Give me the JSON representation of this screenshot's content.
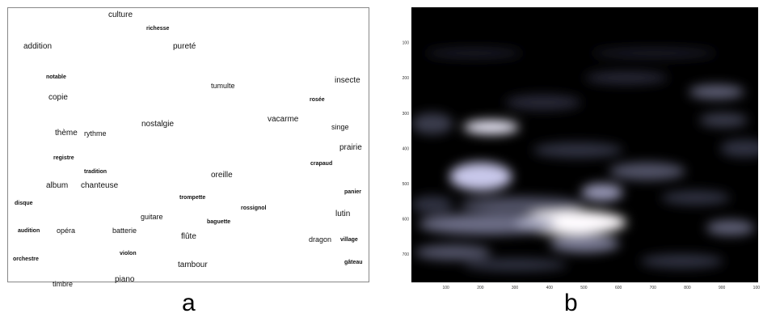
{
  "panel_a": {
    "label": "a",
    "words": [
      {
        "text": "culture",
        "size": "lg"
      },
      {
        "text": "richesse",
        "size": "sm"
      },
      {
        "text": "addition",
        "size": "lg"
      },
      {
        "text": "pureté",
        "size": "lg"
      },
      {
        "text": "notable",
        "size": "sm"
      },
      {
        "text": "tumulte",
        "size": "md"
      },
      {
        "text": "insecte",
        "size": "lg"
      },
      {
        "text": "copie",
        "size": "lg"
      },
      {
        "text": "rosée",
        "size": "sm"
      },
      {
        "text": "vacarme",
        "size": "lg"
      },
      {
        "text": "nostalgie",
        "size": "lg"
      },
      {
        "text": "singe",
        "size": "md"
      },
      {
        "text": "thème",
        "size": "lg"
      },
      {
        "text": "rythme",
        "size": "md"
      },
      {
        "text": "prairie",
        "size": "lg"
      },
      {
        "text": "registre",
        "size": "sm"
      },
      {
        "text": "crapaud",
        "size": "sm"
      },
      {
        "text": "tradition",
        "size": "sm"
      },
      {
        "text": "oreille",
        "size": "lg"
      },
      {
        "text": "album",
        "size": "lg"
      },
      {
        "text": "chanteuse",
        "size": "lg"
      },
      {
        "text": "panier",
        "size": "sm"
      },
      {
        "text": "trompette",
        "size": "sm"
      },
      {
        "text": "disque",
        "size": "sm"
      },
      {
        "text": "rossignol",
        "size": "sm"
      },
      {
        "text": "lutin",
        "size": "lg"
      },
      {
        "text": "guitare",
        "size": "md"
      },
      {
        "text": "baguette",
        "size": "sm"
      },
      {
        "text": "audition",
        "size": "sm"
      },
      {
        "text": "opéra",
        "size": "md"
      },
      {
        "text": "batterie",
        "size": "md"
      },
      {
        "text": "flûte",
        "size": "lg"
      },
      {
        "text": "dragon",
        "size": "md"
      },
      {
        "text": "village",
        "size": "sm"
      },
      {
        "text": "violon",
        "size": "sm"
      },
      {
        "text": "orchestre",
        "size": "sm"
      },
      {
        "text": "tambour",
        "size": "lg"
      },
      {
        "text": "gâteau",
        "size": "sm"
      },
      {
        "text": "piano",
        "size": "lg"
      },
      {
        "text": "timbre",
        "size": "md"
      }
    ]
  },
  "panel_b": {
    "label": "b",
    "chart_data": {
      "type": "heatmap",
      "colormap": "bone",
      "xlim": [
        0,
        1000
      ],
      "ylim": [
        0,
        780
      ],
      "y_inverted": true,
      "x_ticks": [
        "100",
        "200",
        "300",
        "400",
        "500",
        "600",
        "700",
        "800",
        "900",
        "100"
      ],
      "y_ticks": [
        "100",
        "200",
        "300",
        "400",
        "500",
        "600",
        "700"
      ],
      "blobs": [
        {
          "x": 460,
          "y": 610,
          "rx": 160,
          "ry": 35,
          "intensity": 1.0
        },
        {
          "x": 220,
          "y": 615,
          "rx": 200,
          "ry": 30,
          "intensity": 0.55
        },
        {
          "x": 230,
          "y": 340,
          "rx": 80,
          "ry": 20,
          "intensity": 0.95
        },
        {
          "x": 200,
          "y": 480,
          "rx": 90,
          "ry": 40,
          "intensity": 0.85
        },
        {
          "x": 550,
          "y": 525,
          "rx": 60,
          "ry": 25,
          "intensity": 0.7
        },
        {
          "x": 500,
          "y": 670,
          "rx": 100,
          "ry": 25,
          "intensity": 0.6
        },
        {
          "x": 320,
          "y": 560,
          "rx": 180,
          "ry": 22,
          "intensity": 0.45
        },
        {
          "x": 120,
          "y": 695,
          "rx": 110,
          "ry": 22,
          "intensity": 0.45
        },
        {
          "x": 60,
          "y": 330,
          "rx": 60,
          "ry": 30,
          "intensity": 0.35
        },
        {
          "x": 880,
          "y": 240,
          "rx": 80,
          "ry": 20,
          "intensity": 0.5
        },
        {
          "x": 900,
          "y": 320,
          "rx": 70,
          "ry": 20,
          "intensity": 0.35
        },
        {
          "x": 960,
          "y": 400,
          "rx": 70,
          "ry": 25,
          "intensity": 0.3
        },
        {
          "x": 920,
          "y": 625,
          "rx": 70,
          "ry": 22,
          "intensity": 0.5
        },
        {
          "x": 680,
          "y": 465,
          "rx": 110,
          "ry": 25,
          "intensity": 0.45
        },
        {
          "x": 820,
          "y": 540,
          "rx": 100,
          "ry": 20,
          "intensity": 0.3
        },
        {
          "x": 780,
          "y": 720,
          "rx": 120,
          "ry": 20,
          "intensity": 0.3
        },
        {
          "x": 480,
          "y": 405,
          "rx": 130,
          "ry": 22,
          "intensity": 0.3
        },
        {
          "x": 380,
          "y": 270,
          "rx": 110,
          "ry": 22,
          "intensity": 0.25
        },
        {
          "x": 620,
          "y": 200,
          "rx": 120,
          "ry": 18,
          "intensity": 0.25
        },
        {
          "x": 180,
          "y": 130,
          "rx": 140,
          "ry": 15,
          "intensity": 0.18
        },
        {
          "x": 700,
          "y": 130,
          "rx": 180,
          "ry": 15,
          "intensity": 0.18
        },
        {
          "x": 300,
          "y": 730,
          "rx": 150,
          "ry": 18,
          "intensity": 0.3
        },
        {
          "x": 60,
          "y": 560,
          "rx": 60,
          "ry": 25,
          "intensity": 0.3
        }
      ]
    }
  }
}
